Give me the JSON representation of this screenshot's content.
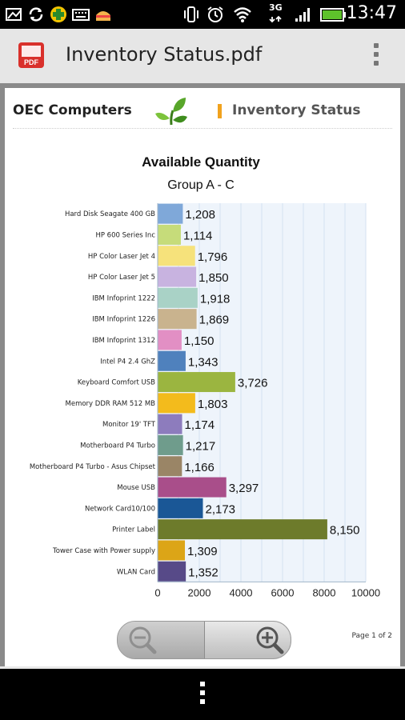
{
  "status_bar": {
    "time": "13:47",
    "network": "3G",
    "icons": [
      "image-icon",
      "sync-icon",
      "game-icon",
      "keyboard-icon",
      "sandwich-icon",
      "vibrate-icon",
      "alarm-icon",
      "wifi-icon",
      "signal-icon",
      "battery-icon"
    ]
  },
  "app_bar": {
    "title": "Inventory Status.pdf",
    "icon": "pdf-app-icon",
    "icon_label": "PDF"
  },
  "report": {
    "company": "OEC Computers",
    "title": "Inventory Status",
    "page_label": "Page 1 of 2"
  },
  "chart_data": {
    "type": "bar",
    "orientation": "horizontal",
    "title": "Available Quantity",
    "subtitle": "Group A - C",
    "categories": [
      "Hard Disk Seagate 400 GB",
      "HP 600 Series Inc",
      "HP Color Laser Jet 4",
      "HP Color Laser Jet 5",
      "IBM Infoprint 1222",
      "IBM Infoprint 1226",
      "IBM Infoprint 1312",
      "Intel P4 2.4 GhZ",
      "Keyboard Comfort USB",
      "Memory DDR RAM 512 MB",
      "Monitor 19' TFT",
      "Motherboard P4 Turbo",
      "Motherboard P4 Turbo - Asus Chipset",
      "Mouse USB",
      "Network Card10/100",
      "Printer Label",
      "Tower Case with Power supply",
      "WLAN Card"
    ],
    "values": [
      1208,
      1114,
      1796,
      1850,
      1918,
      1869,
      1150,
      1343,
      3726,
      1803,
      1174,
      1217,
      1166,
      3297,
      2173,
      8150,
      1309,
      1352
    ],
    "value_labels": [
      "1,208",
      "1,114",
      "1,796",
      "1,850",
      "1,918",
      "1,869",
      "1,150",
      "1,343",
      "3,726",
      "1,803",
      "1,174",
      "1,217",
      "1,166",
      "3,297",
      "2,173",
      "8,150",
      "1,309",
      "1,352"
    ],
    "colors": [
      "#7fa8d9",
      "#c6dc7a",
      "#f6e27b",
      "#c8b3e0",
      "#a9d2c6",
      "#c9b38e",
      "#e28fc4",
      "#4f81bd",
      "#9bb540",
      "#f3bb1c",
      "#8d7cbd",
      "#6f9c8c",
      "#9a8566",
      "#a94e8a",
      "#1a5796",
      "#6d7b2b",
      "#dca517",
      "#574a88"
    ],
    "x_ticks": [
      "0",
      "2000",
      "4000",
      "6000",
      "8000",
      "10000"
    ],
    "xlim": [
      0,
      10000
    ],
    "grid": true
  },
  "zoom": {
    "zoom_out_icon": "zoom-out-icon",
    "zoom_in_icon": "zoom-in-icon"
  },
  "nav_bar": {
    "menu_icon": "menu-key-icon"
  }
}
